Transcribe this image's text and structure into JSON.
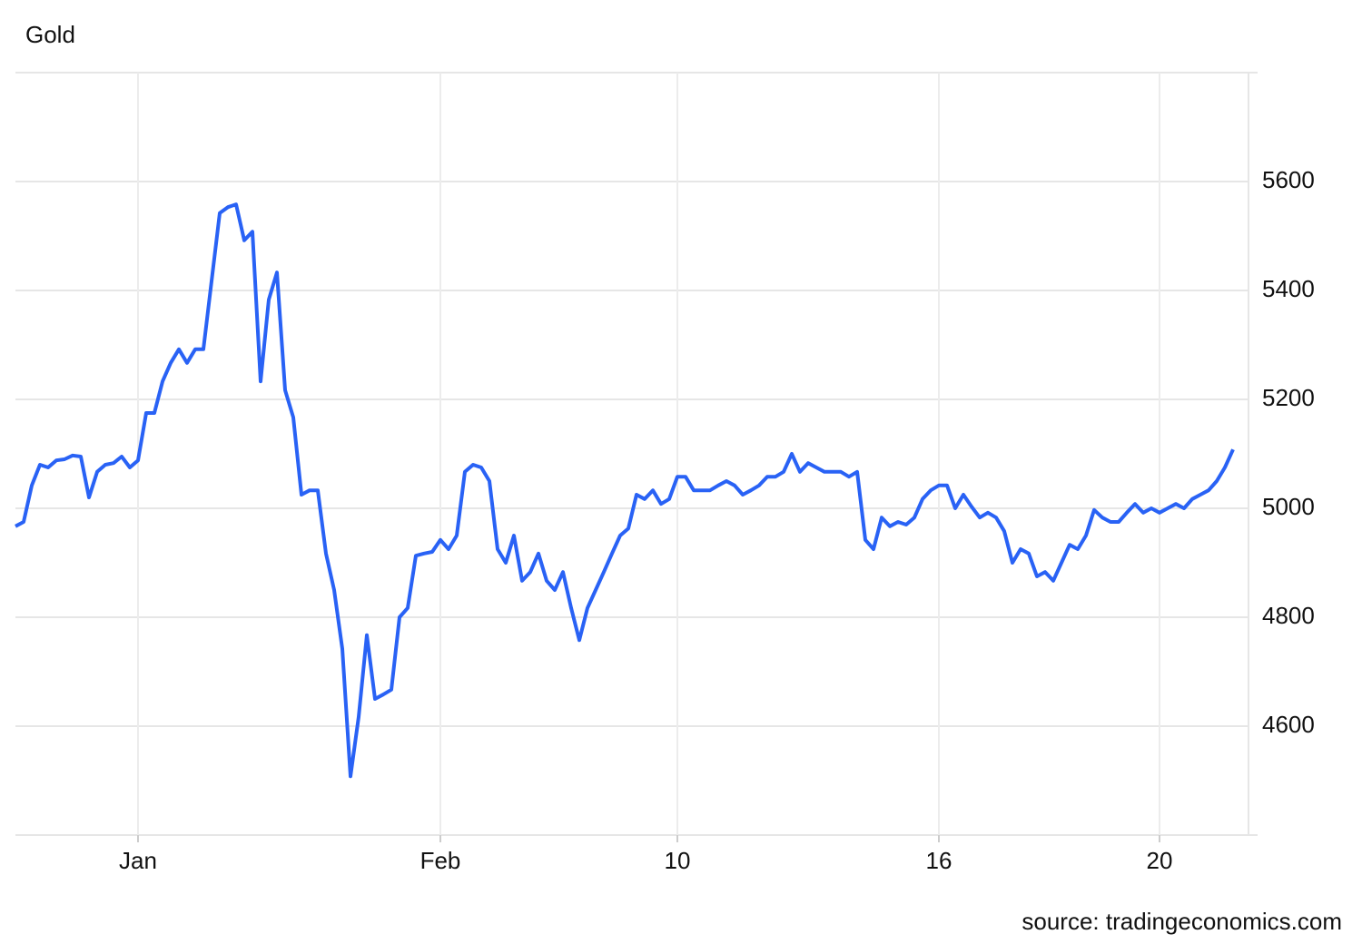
{
  "chart_data": {
    "type": "line",
    "title": "Gold",
    "source": "source: tradingeconomics.com",
    "categories": [
      null,
      null,
      null,
      null,
      null,
      null,
      null,
      null,
      null,
      null,
      null,
      null,
      null,
      null,
      null,
      "Jan",
      null,
      null,
      null,
      null,
      null,
      null,
      null,
      null,
      null,
      null,
      null,
      null,
      null,
      null,
      null,
      null,
      null,
      null,
      null,
      null,
      null,
      null,
      null,
      null,
      null,
      null,
      null,
      null,
      null,
      null,
      null,
      null,
      null,
      null,
      null,
      null,
      "Feb",
      null,
      null,
      null,
      null,
      null,
      null,
      null,
      null,
      null,
      null,
      null,
      null,
      null,
      null,
      null,
      null,
      null,
      null,
      null,
      null,
      null,
      null,
      null,
      null,
      null,
      null,
      null,
      null,
      "10",
      null,
      null,
      null,
      null,
      null,
      null,
      null,
      null,
      null,
      null,
      null,
      null,
      null,
      null,
      null,
      null,
      null,
      null,
      null,
      null,
      null,
      null,
      null,
      null,
      null,
      null,
      null,
      null,
      null,
      null,
      null,
      "16",
      null,
      null,
      null,
      null,
      null,
      null,
      null,
      null,
      null,
      null,
      null,
      null,
      null,
      null,
      null,
      null,
      null,
      null,
      null,
      null,
      null,
      null,
      null,
      null,
      null,
      null,
      "20",
      null,
      null,
      null,
      null,
      null,
      null,
      null,
      null,
      null
    ],
    "series": [
      {
        "name": "Gold",
        "color": "#2962f5",
        "values": [
          4967,
          4975,
          5042,
          5080,
          5075,
          5088,
          5090,
          5097,
          5095,
          5020,
          5067,
          5080,
          5083,
          5095,
          5075,
          5088,
          5175,
          5175,
          5233,
          5267,
          5292,
          5267,
          5292,
          5292,
          5417,
          5542,
          5553,
          5558,
          5492,
          5508,
          5233,
          5383,
          5433,
          5217,
          5167,
          5025,
          5033,
          5033,
          4917,
          4850,
          4742,
          4508,
          4617,
          4767,
          4650,
          4658,
          4667,
          4800,
          4817,
          4913,
          4917,
          4920,
          4942,
          4925,
          4950,
          5067,
          5080,
          5075,
          5050,
          4925,
          4900,
          4950,
          4867,
          4883,
          4917,
          4867,
          4850,
          4883,
          4817,
          4758,
          4817,
          4850,
          4883,
          4917,
          4950,
          4963,
          5025,
          5017,
          5033,
          5008,
          5017,
          5058,
          5058,
          5033,
          5033,
          5033,
          5042,
          5050,
          5042,
          5025,
          5033,
          5042,
          5058,
          5058,
          5067,
          5100,
          5067,
          5083,
          5075,
          5067,
          5067,
          5067,
          5058,
          5067,
          4942,
          4925,
          4983,
          4967,
          4975,
          4970,
          4983,
          5017,
          5033,
          5042,
          5042,
          5000,
          5025,
          5003,
          4983,
          4992,
          4983,
          4958,
          4900,
          4925,
          4917,
          4875,
          4883,
          4867,
          4900,
          4933,
          4925,
          4950,
          4997,
          4983,
          4975,
          4975,
          4992,
          5008,
          4992,
          5000,
          4992,
          5000,
          5008,
          5000,
          5017,
          5025,
          5033,
          5050,
          5075,
          5108
        ]
      }
    ],
    "ylim": [
      4400,
      5800
    ],
    "yticks": [
      4600,
      4800,
      5000,
      5200,
      5400,
      5600
    ],
    "grid": true
  }
}
